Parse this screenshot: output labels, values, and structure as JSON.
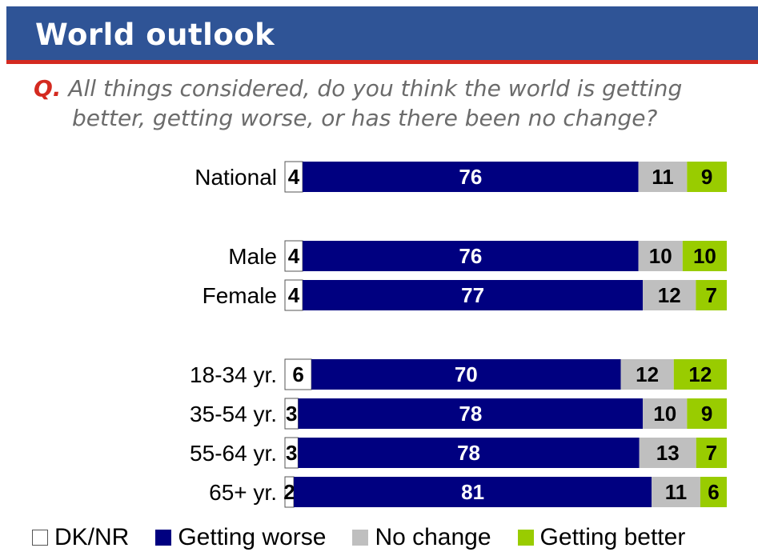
{
  "header": {
    "title": "World outlook"
  },
  "question": {
    "marker": "Q.",
    "line1": "All things considered, do you think the world is getting",
    "line2": "better, getting worse, or has there been no change?"
  },
  "chart_data": {
    "type": "bar",
    "orientation": "horizontal",
    "stacked": true,
    "categories": [
      "National",
      "Male",
      "Female",
      "18-34 yr.",
      "35-54 yr.",
      "55-64 yr.",
      "65+ yr."
    ],
    "series": [
      {
        "name": "DK/NR",
        "values": [
          4,
          4,
          4,
          6,
          3,
          3,
          2
        ],
        "color": "#ffffff",
        "label_color": "#000000"
      },
      {
        "name": "Getting worse",
        "values": [
          76,
          76,
          77,
          70,
          78,
          78,
          81
        ],
        "color": "#000080",
        "label_color": "#ffffff"
      },
      {
        "name": "No change",
        "values": [
          11,
          10,
          12,
          12,
          10,
          13,
          11
        ],
        "color": "#bfbfbf",
        "label_color": "#000000"
      },
      {
        "name": "Getting better",
        "values": [
          9,
          10,
          7,
          12,
          9,
          7,
          6
        ],
        "color": "#99cc00",
        "label_color": "#000000"
      }
    ],
    "xlim": [
      0,
      100
    ],
    "grid": false,
    "legend": "bottom"
  }
}
